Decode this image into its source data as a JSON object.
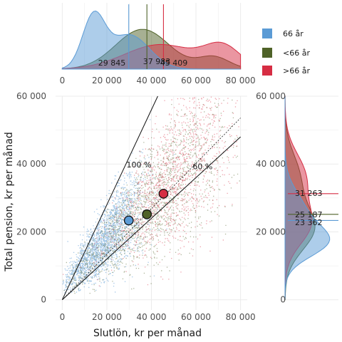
{
  "chart_data": {
    "type": "scatter",
    "xlabel": "Slutlön, kr per månad",
    "ylabel": "Total pension, kr per månad",
    "xlim": [
      -3000,
      83000
    ],
    "ylim": [
      -3000,
      60000
    ],
    "x_ticks": [
      0,
      20000,
      40000,
      60000,
      80000
    ],
    "x_tick_labels": [
      "0",
      "20 000",
      "40 000",
      "60 000",
      "80 000"
    ],
    "y_ticks": [
      0,
      20000,
      40000,
      60000
    ],
    "y_tick_labels": [
      "0",
      "20 000",
      "40 000",
      "60 000"
    ],
    "grid": true,
    "legend_position": "top-right",
    "series": [
      {
        "name": "66 år",
        "color": "#5b9bd5",
        "mean_x": 29845,
        "mean_y": 23362
      },
      {
        "name": "<66 år",
        "color": "#4f6228",
        "mean_x": 37983,
        "mean_y": 25187
      },
      {
        "name": ">66 år",
        "color": "#d62d43",
        "mean_x": 45409,
        "mean_y": 31263
      }
    ],
    "reference_lines": [
      {
        "label": "100 %",
        "slope": 1.0
      },
      {
        "label": "60 %",
        "slope": 0.6
      }
    ],
    "top_marginal_labels": [
      "29 845",
      "37 983",
      "45 409"
    ],
    "right_marginal_labels": [
      "31 263",
      "25 187",
      "23 362"
    ]
  }
}
